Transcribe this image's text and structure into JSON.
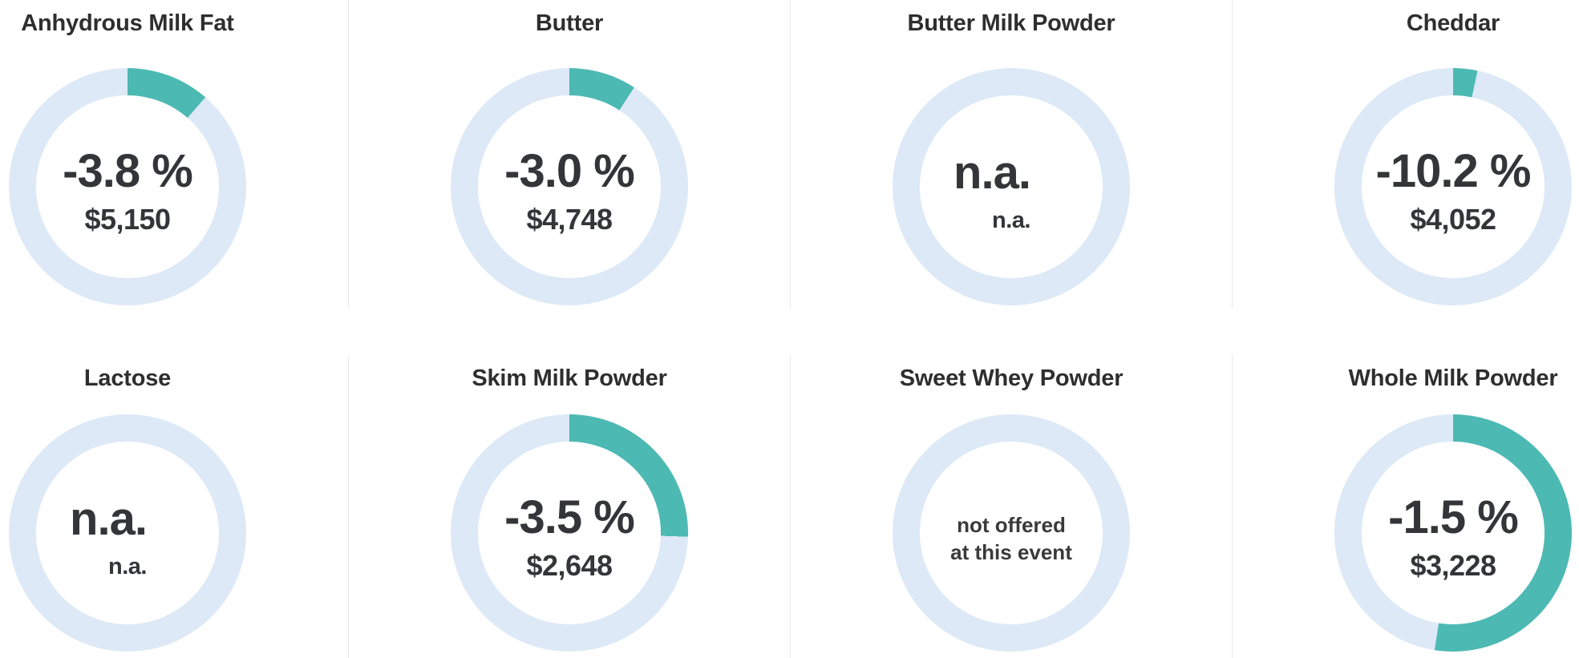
{
  "colors": {
    "ring_fill": "#4db9b3",
    "ring_base": "#dde9f6",
    "divider": "#e9e9e9",
    "title_text": "#2e2e2e",
    "value_text": "#333538"
  },
  "chart_data": {
    "type": "pie",
    "subtype": "donut-gauge-grid",
    "layout": "2 rows x 4 columns, teal arc starts at 12 o'clock clockwise over light-blue ring",
    "cells": [
      {
        "title": "Anhydrous Milk Fat",
        "change_pct": "-3.8 %",
        "change_value": -3.8,
        "price": "$5,150",
        "price_value": 5150,
        "ring_pct": 11.4
      },
      {
        "title": "Butter",
        "change_pct": "-3.0 %",
        "change_value": -3.0,
        "price": "$4,748",
        "price_value": 4748,
        "ring_pct": 9.2
      },
      {
        "title": "Butter Milk Powder",
        "change_pct": "n.a.",
        "change_value": null,
        "price": "n.a.",
        "price_value": null,
        "ring_pct": 0
      },
      {
        "title": "Cheddar",
        "change_pct": "-10.2 %",
        "change_value": -10.2,
        "price": "$4,052",
        "price_value": 4052,
        "ring_pct": 3.3
      },
      {
        "title": "Lactose",
        "change_pct": "n.a.",
        "change_value": null,
        "price": "n.a.",
        "price_value": null,
        "ring_pct": 0
      },
      {
        "title": "Skim Milk Powder",
        "change_pct": "-3.5 %",
        "change_value": -3.5,
        "price": "$2,648",
        "price_value": 2648,
        "ring_pct": 25.5
      },
      {
        "title": "Sweet Whey Powder",
        "note_line1": "not offered",
        "note_line2": "at this event",
        "ring_pct": 0
      },
      {
        "title": "Whole Milk Powder",
        "change_pct": "-1.5 %",
        "change_value": -1.5,
        "price": "$3,228",
        "price_value": 3228,
        "ring_pct": 52.5
      }
    ]
  }
}
